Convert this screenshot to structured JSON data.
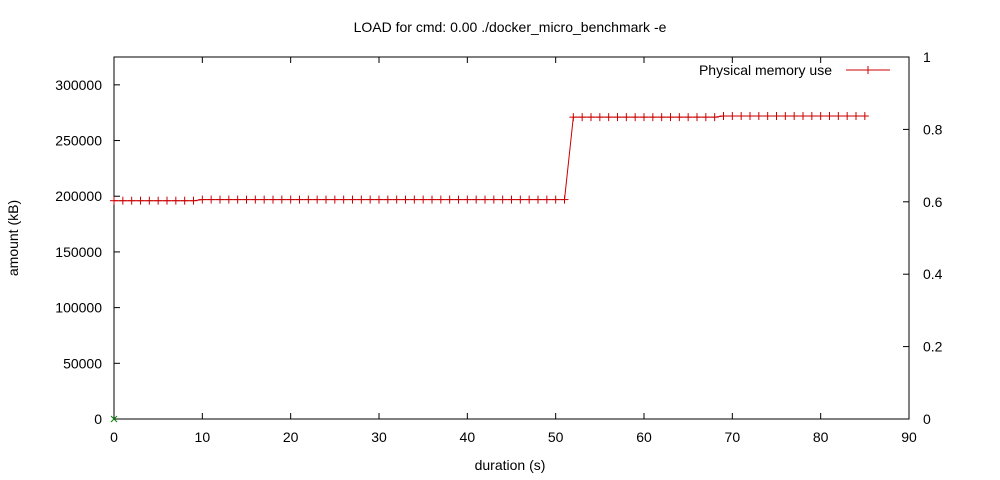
{
  "chart_data": {
    "type": "line",
    "title": "LOAD for cmd: 0.00 ./docker_micro_benchmark -e",
    "xlabel": "duration (s)",
    "ylabel": "amount (kB)",
    "xlim": [
      0,
      90
    ],
    "ylim": [
      0,
      325000
    ],
    "y2lim": [
      0,
      1
    ],
    "xticks": [
      0,
      10,
      20,
      30,
      40,
      50,
      60,
      70,
      80,
      90
    ],
    "yticks": [
      0,
      50000,
      100000,
      150000,
      200000,
      250000,
      300000
    ],
    "y2ticks": [
      0,
      0.2,
      0.4,
      0.6,
      0.8,
      1
    ],
    "y2ticklabels": [
      "0",
      "0.2",
      "0.4",
      "0.6",
      "0.8",
      "1"
    ],
    "grid": false,
    "legend_position": "top-right",
    "colors": {
      "series": "#cc0000",
      "secondary_marker": "#008000",
      "axis": "#000000"
    },
    "series": [
      {
        "name": "Physical memory use",
        "marker": "plus",
        "x": [
          0,
          1,
          2,
          3,
          4,
          5,
          6,
          7,
          8,
          9,
          10,
          11,
          12,
          13,
          14,
          15,
          16,
          17,
          18,
          19,
          20,
          21,
          22,
          23,
          24,
          25,
          26,
          27,
          28,
          29,
          30,
          31,
          32,
          33,
          34,
          35,
          36,
          37,
          38,
          39,
          40,
          41,
          42,
          43,
          44,
          45,
          46,
          47,
          48,
          49,
          50,
          51,
          52,
          53,
          54,
          55,
          56,
          57,
          58,
          59,
          60,
          61,
          62,
          63,
          64,
          65,
          66,
          67,
          68,
          69,
          70,
          71,
          72,
          73,
          74,
          75,
          76,
          77,
          78,
          79,
          80,
          81,
          82,
          83,
          84,
          85
        ],
        "y": [
          196000,
          196000,
          196000,
          196000,
          196000,
          196000,
          196000,
          196000,
          196000,
          196000,
          197000,
          197000,
          197000,
          197000,
          197000,
          197000,
          197000,
          197000,
          197000,
          197000,
          197000,
          197000,
          197000,
          197000,
          197000,
          197000,
          197000,
          197000,
          197000,
          197000,
          197000,
          197000,
          197000,
          197000,
          197000,
          197000,
          197000,
          197000,
          197000,
          197000,
          197000,
          197000,
          197000,
          197000,
          197000,
          197000,
          197000,
          197000,
          197000,
          197000,
          197000,
          197000,
          271000,
          271000,
          271000,
          271000,
          271000,
          271000,
          271000,
          271000,
          271000,
          271000,
          271000,
          271000,
          271000,
          271000,
          271000,
          271000,
          271000,
          272000,
          272000,
          272000,
          272000,
          272000,
          272000,
          272000,
          272000,
          272000,
          272000,
          272000,
          272000,
          272000,
          272000,
          272000,
          272000,
          272000
        ]
      }
    ],
    "secondary_points": [
      {
        "marker": "cross",
        "x": 0,
        "y": 0
      }
    ]
  }
}
